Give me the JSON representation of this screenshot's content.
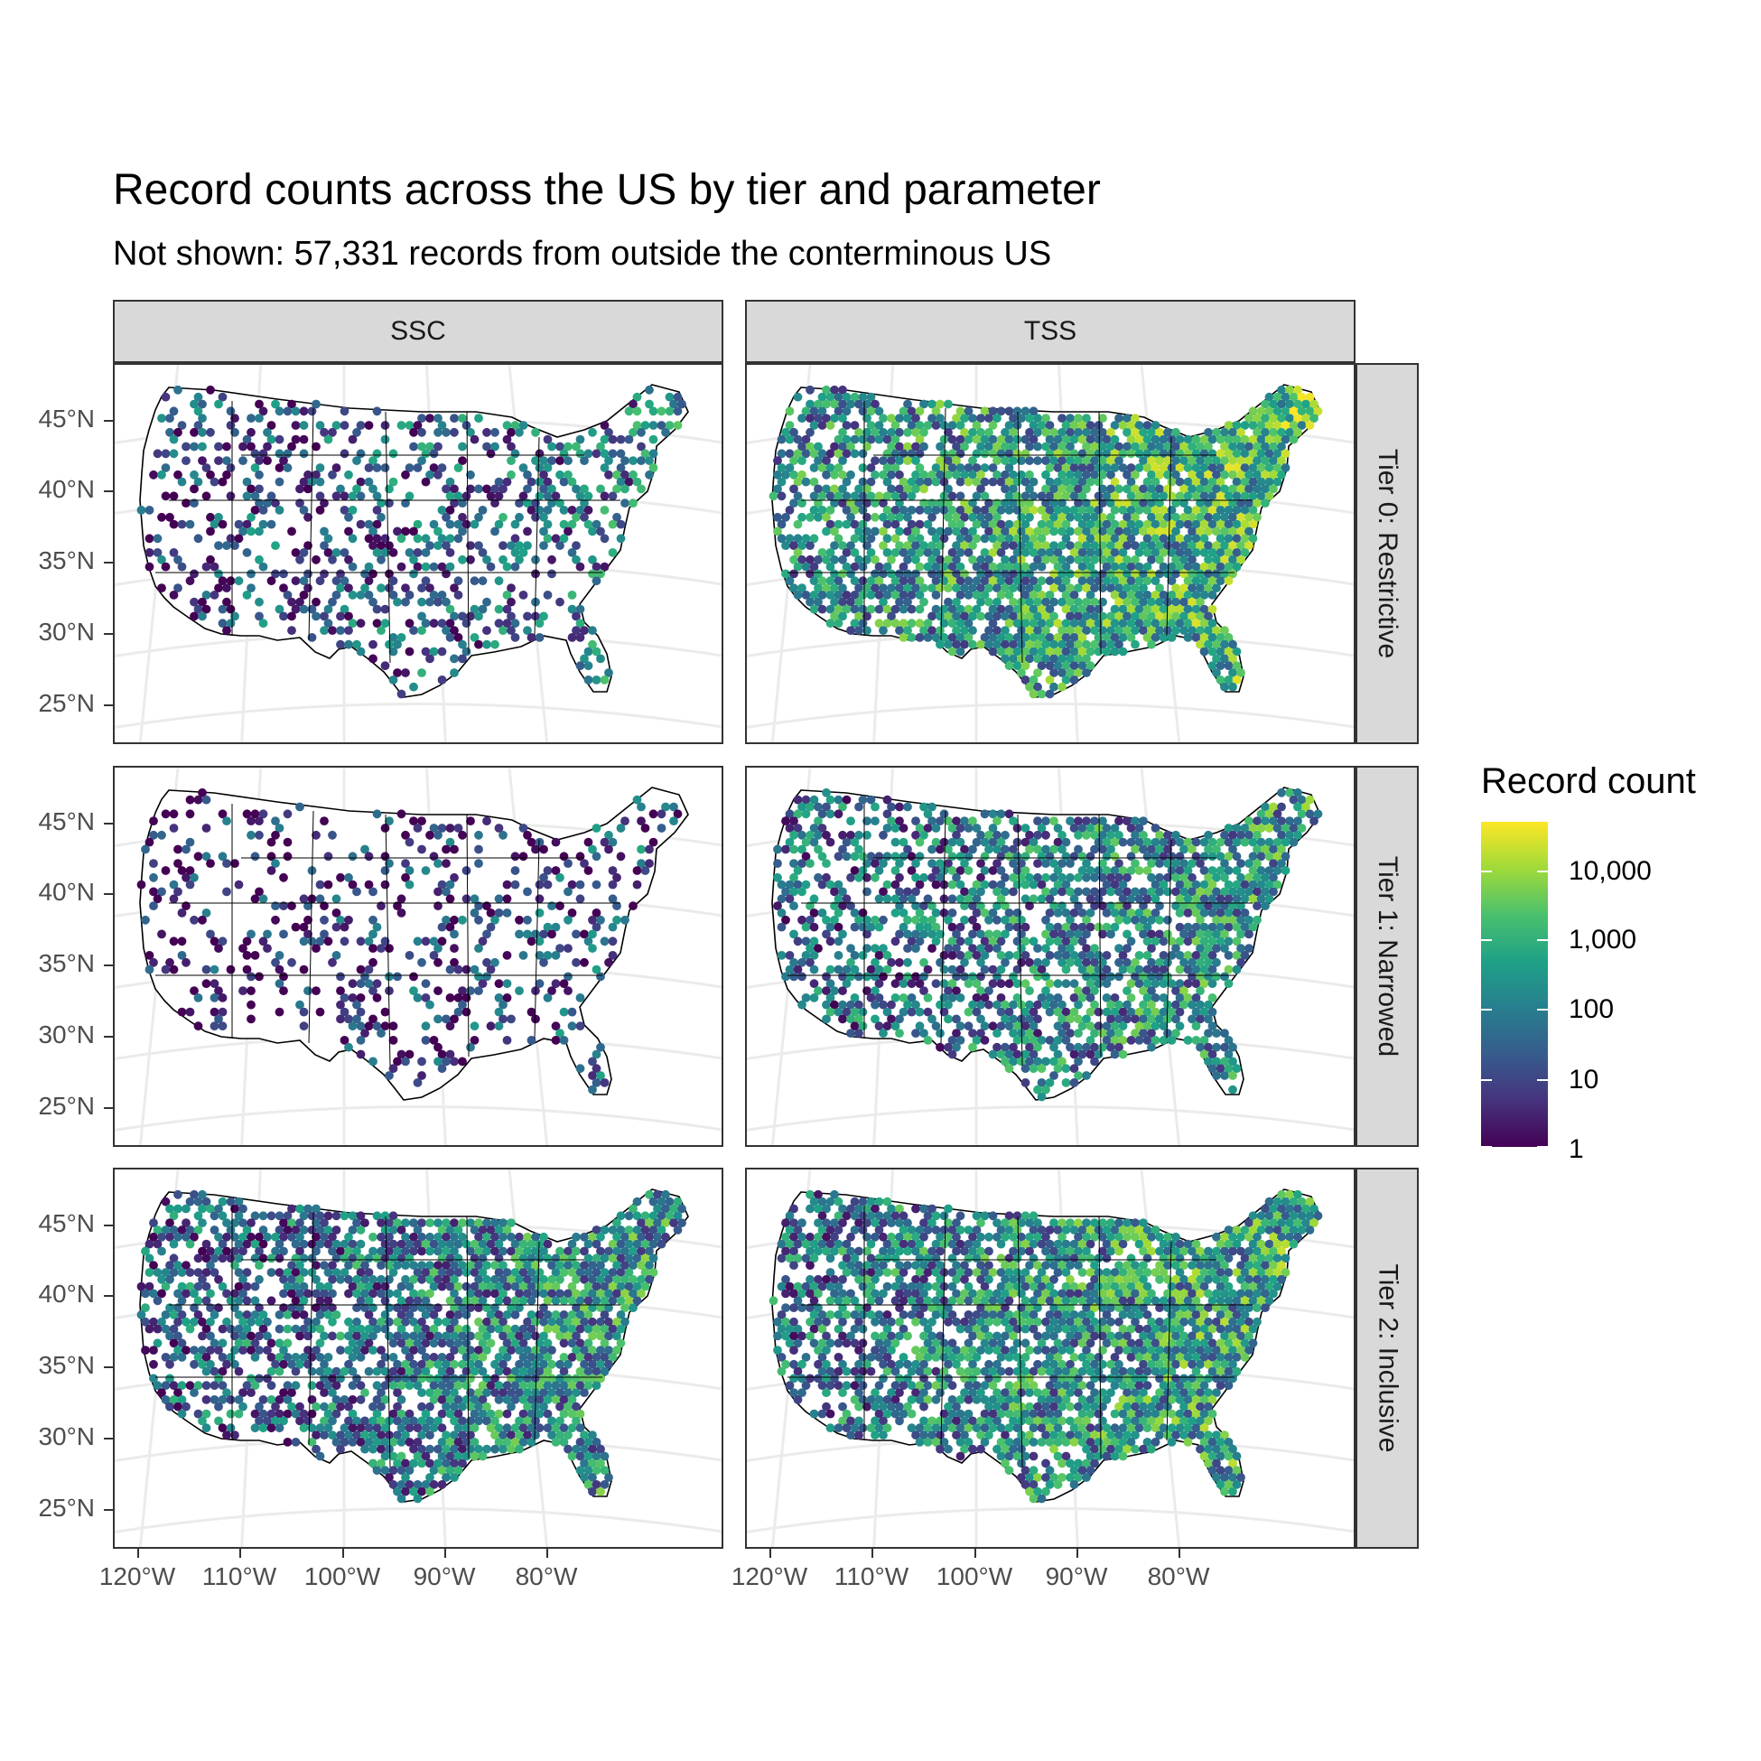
{
  "title": "Record counts across the US by tier and parameter",
  "subtitle": "Not shown: 57,331 records from outside the conterminous US",
  "columns": [
    "SSC",
    "TSS"
  ],
  "rows": [
    "Tier 0: Restrictive",
    "Tier 1: Narrowed",
    "Tier 2: Inclusive"
  ],
  "y_axis_labels": [
    "45°N",
    "40°N",
    "35°N",
    "30°N",
    "25°N"
  ],
  "x_axis_labels": [
    "120°W",
    "110°W",
    "100°W",
    "90°W",
    "80°W"
  ],
  "legend": {
    "title": "Record count",
    "labels": [
      "10,000",
      "1,000",
      "100",
      "10",
      "1"
    ],
    "scale": "log10",
    "colors": [
      "#440154",
      "#46337e",
      "#365c8d",
      "#277f8e",
      "#1fa187",
      "#4ac16d",
      "#a0da39",
      "#fde725"
    ]
  },
  "chart_data": {
    "type": "heatmap",
    "description_scale": "hexbin record counts (log scale) per tier and parameter",
    "facets": [
      {
        "row": "Tier 0: Restrictive",
        "col": "SSC",
        "density": 0.38,
        "level": 0.3
      },
      {
        "row": "Tier 0: Restrictive",
        "col": "TSS",
        "density": 0.88,
        "level": 0.55
      },
      {
        "row": "Tier 1: Narrowed",
        "col": "SSC",
        "density": 0.28,
        "level": 0.18
      },
      {
        "row": "Tier 1: Narrowed",
        "col": "TSS",
        "density": 0.72,
        "level": 0.42
      },
      {
        "row": "Tier 2: Inclusive",
        "col": "SSC",
        "density": 0.78,
        "level": 0.4
      },
      {
        "row": "Tier 2: Inclusive",
        "col": "TSS",
        "density": 0.86,
        "level": 0.48
      }
    ]
  }
}
